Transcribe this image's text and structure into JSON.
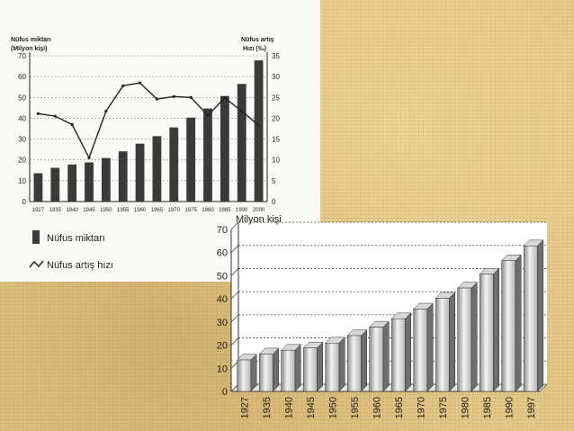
{
  "chart_data": [
    {
      "type": "bar",
      "title": "",
      "ylabel": "Nüfus miktarı (Milyon kişi)",
      "y2label": "Nüfus artış Hızı (‰)",
      "categories": [
        "1927",
        "1935",
        "1940",
        "1945",
        "1950",
        "1955",
        "1960",
        "1965",
        "1970",
        "1975",
        "1980",
        "1985",
        "1990",
        "2000"
      ],
      "series": [
        {
          "name": "Nüfus miktarı",
          "type": "bar",
          "values": [
            13.6,
            16.2,
            17.8,
            18.8,
            20.9,
            24.1,
            27.8,
            31.4,
            35.6,
            40.3,
            44.7,
            50.7,
            56.5,
            67.8
          ]
        },
        {
          "name": "Nüfus artış hızı",
          "type": "line",
          "axis": "right",
          "values": [
            21.1,
            20.5,
            18.5,
            10.5,
            21.7,
            27.8,
            28.5,
            24.6,
            25.2,
            25.0,
            20.7,
            24.9,
            21.7,
            18.3
          ]
        }
      ],
      "yticks": [
        "0",
        "10",
        "20",
        "30",
        "40",
        "50",
        "60",
        "70"
      ],
      "y2ticks": [
        "0",
        "5",
        "10",
        "15",
        "20",
        "25",
        "30",
        "35"
      ],
      "ylim": [
        0,
        70
      ],
      "y2lim": [
        0,
        35
      ],
      "legend": [
        "Nüfus miktarı",
        "Nüfus artış hızı"
      ],
      "legend_position": "bottom-left",
      "grid": true
    },
    {
      "type": "bar",
      "title": "",
      "ylabel": "Milyon kişi",
      "categories": [
        "1927",
        "1935",
        "1940",
        "1945",
        "1950",
        "1955",
        "1960",
        "1965",
        "1970",
        "1975",
        "1980",
        "1985",
        "1990",
        "1997"
      ],
      "values": [
        13.6,
        16.2,
        17.8,
        18.8,
        20.9,
        24.1,
        27.8,
        31.4,
        35.6,
        40.3,
        44.7,
        50.7,
        56.5,
        62.9
      ],
      "yticks": [
        "0",
        "10",
        "20",
        "30",
        "40",
        "50",
        "60",
        "70"
      ],
      "ylim": [
        0,
        70
      ],
      "grid": true,
      "style": "3d"
    }
  ]
}
